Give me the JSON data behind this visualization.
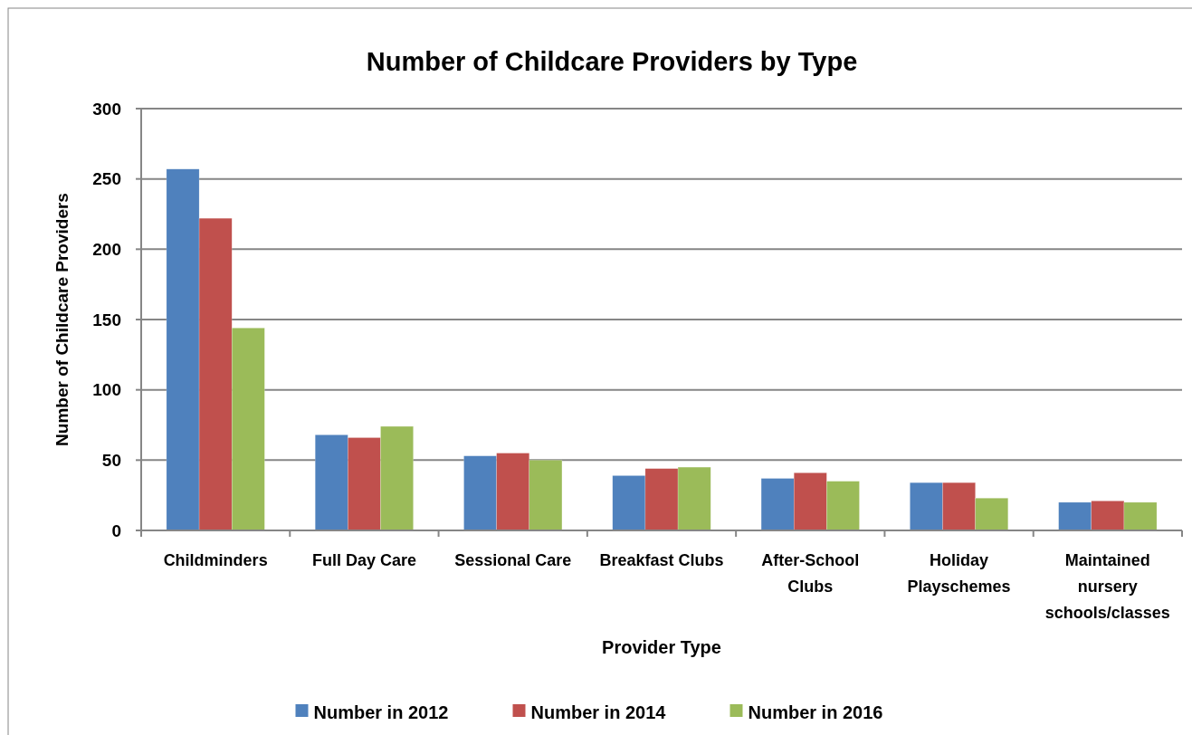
{
  "chart_data": {
    "type": "bar",
    "title": "Number of Childcare Providers by Type",
    "xlabel": "Provider Type",
    "ylabel": "Number of Childcare Providers",
    "categories": [
      "Childminders",
      "Full Day Care",
      "Sessional Care",
      "Breakfast Clubs",
      "After-School Clubs",
      "Holiday Playschemes",
      "Maintained nursery schools/classes"
    ],
    "series": [
      {
        "name": "Number in 2012",
        "color": "#4f81bd",
        "values": [
          257,
          68,
          53,
          39,
          37,
          34,
          20
        ]
      },
      {
        "name": "Number in 2014",
        "color": "#c0504d",
        "values": [
          222,
          66,
          55,
          44,
          41,
          34,
          21
        ]
      },
      {
        "name": "Number in 2016",
        "color": "#9bbb59",
        "values": [
          144,
          74,
          50,
          45,
          35,
          23,
          20
        ]
      }
    ],
    "ylim": [
      0,
      300
    ],
    "yticks": [
      0,
      50,
      100,
      150,
      200,
      250,
      300
    ],
    "grid": "y",
    "legend": "bottom"
  }
}
